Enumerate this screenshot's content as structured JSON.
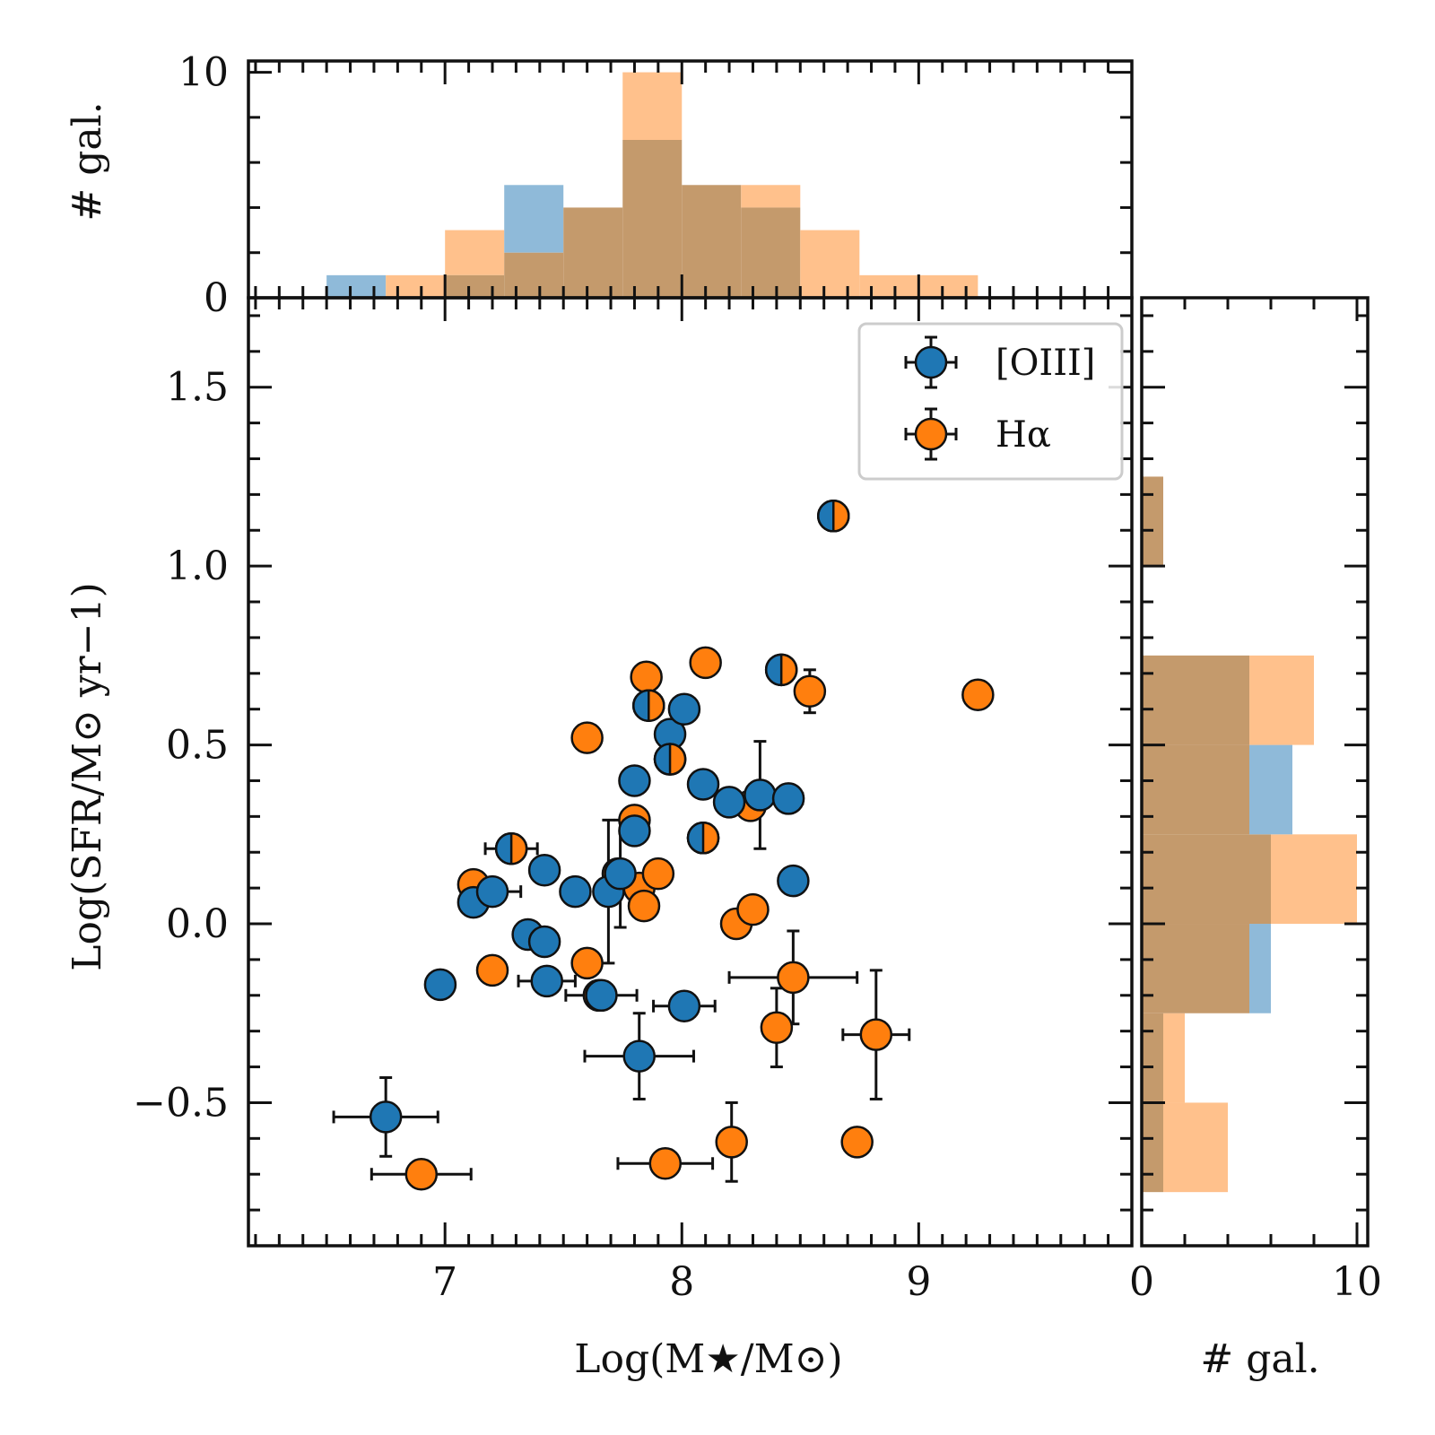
{
  "chart_data": {
    "type": "scatter",
    "title": "",
    "xlabel": "Log(M★/M⊙)",
    "ylabel": "Log(SFR/M⊙ yr−1)",
    "xlim": [
      6.17,
      9.9
    ],
    "ylim": [
      -0.9,
      1.75
    ],
    "x_ticks": [
      "7",
      "8",
      "9"
    ],
    "y_ticks": [
      "−0.5",
      "0.0",
      "0.5",
      "1.0",
      "1.5"
    ],
    "legend": {
      "placement": "top-right",
      "entries": [
        "[OIII]",
        "Hα"
      ]
    },
    "colors": {
      "oiii": "#1f77b4",
      "halpha": "#ff7f0e",
      "overlap": "#c49a6c",
      "oiii_hist": "#8fbad9",
      "halpha_hist": "#ffc18c",
      "edge": "#111111"
    },
    "series": [
      {
        "name": "[OIII]",
        "points": [
          {
            "x": 6.75,
            "y": -0.54,
            "xerr": 0.22,
            "yerr": 0.11
          },
          {
            "x": 6.98,
            "y": -0.17
          },
          {
            "x": 7.12,
            "y": 0.06
          },
          {
            "x": 7.2,
            "y": 0.09,
            "xerr": 0.12
          },
          {
            "x": 7.28,
            "y": 0.21,
            "xerr": 0.11
          },
          {
            "x": 7.35,
            "y": -0.03
          },
          {
            "x": 7.42,
            "y": -0.05
          },
          {
            "x": 7.42,
            "y": 0.15
          },
          {
            "x": 7.43,
            "y": -0.16,
            "xerr": 0.12
          },
          {
            "x": 7.55,
            "y": 0.09
          },
          {
            "x": 7.66,
            "y": -0.2,
            "xerr": 0.15
          },
          {
            "x": 7.69,
            "y": 0.09,
            "yerr": 0.2
          },
          {
            "x": 7.74,
            "y": 0.14,
            "yerr": 0.15
          },
          {
            "x": 7.8,
            "y": 0.4
          },
          {
            "x": 7.8,
            "y": 0.26
          },
          {
            "x": 7.82,
            "y": -0.37,
            "xerr": 0.23,
            "yerr": 0.12
          },
          {
            "x": 7.86,
            "y": 0.61
          },
          {
            "x": 7.95,
            "y": 0.53
          },
          {
            "x": 7.95,
            "y": 0.46
          },
          {
            "x": 8.01,
            "y": 0.6
          },
          {
            "x": 8.01,
            "y": -0.23,
            "xerr": 0.13
          },
          {
            "x": 8.09,
            "y": 0.39
          },
          {
            "x": 8.09,
            "y": 0.24
          },
          {
            "x": 8.2,
            "y": 0.34
          },
          {
            "x": 8.33,
            "y": 0.36,
            "yerr": 0.15
          },
          {
            "x": 8.42,
            "y": 0.71
          },
          {
            "x": 8.45,
            "y": 0.35,
            "xerr": 0.06
          },
          {
            "x": 8.47,
            "y": 0.12
          },
          {
            "x": 8.64,
            "y": 1.14
          }
        ]
      },
      {
        "name": "Hα",
        "points": [
          {
            "x": 6.9,
            "y": -0.7,
            "xerr": 0.21
          },
          {
            "x": 7.12,
            "y": 0.11
          },
          {
            "x": 7.2,
            "y": -0.13
          },
          {
            "x": 7.28,
            "y": 0.21
          },
          {
            "x": 7.6,
            "y": -0.11
          },
          {
            "x": 7.6,
            "y": 0.52
          },
          {
            "x": 7.65,
            "y": -0.2
          },
          {
            "x": 7.73,
            "y": 0.14
          },
          {
            "x": 7.8,
            "y": 0.29
          },
          {
            "x": 7.82,
            "y": 0.1
          },
          {
            "x": 7.84,
            "y": 0.05
          },
          {
            "x": 7.85,
            "y": 0.69
          },
          {
            "x": 7.86,
            "y": 0.61
          },
          {
            "x": 7.9,
            "y": 0.14
          },
          {
            "x": 7.93,
            "y": -0.67,
            "xerr": 0.2
          },
          {
            "x": 7.95,
            "y": 0.46
          },
          {
            "x": 8.09,
            "y": 0.24
          },
          {
            "x": 8.1,
            "y": 0.73
          },
          {
            "x": 8.21,
            "y": -0.61,
            "yerr": 0.11
          },
          {
            "x": 8.23,
            "y": 0.0
          },
          {
            "x": 8.29,
            "y": 0.33
          },
          {
            "x": 8.3,
            "y": 0.04
          },
          {
            "x": 8.4,
            "y": -0.29,
            "yerr": 0.11
          },
          {
            "x": 8.42,
            "y": 0.71
          },
          {
            "x": 8.47,
            "y": -0.15,
            "xerr": 0.27,
            "yerr": 0.13
          },
          {
            "x": 8.54,
            "y": 0.65,
            "yerr": 0.06
          },
          {
            "x": 8.64,
            "y": 1.14
          },
          {
            "x": 8.74,
            "y": -0.61
          },
          {
            "x": 8.82,
            "y": -0.31,
            "xerr": 0.14,
            "yerr": 0.18
          },
          {
            "x": 9.25,
            "y": 0.64
          }
        ]
      }
    ],
    "x_histogram": {
      "ylabel": "# gal.",
      "ylim": [
        0,
        10.5
      ],
      "yticks": [
        "0",
        "10"
      ],
      "bin_edges": [
        6.5,
        6.75,
        7.0,
        7.25,
        7.5,
        7.75,
        8.0,
        8.25,
        8.5,
        8.75,
        9.0,
        9.25
      ],
      "oiii_counts": [
        1,
        0,
        1,
        5,
        4,
        7,
        5,
        4,
        0,
        0,
        0
      ],
      "halpha_counts": [
        0,
        1,
        3,
        2,
        4,
        10,
        5,
        5,
        3,
        1,
        1
      ]
    },
    "y_histogram": {
      "xlabel": "# gal.",
      "xlim": [
        0,
        10.5
      ],
      "xticks": [
        "0",
        "10"
      ],
      "bin_edges": [
        -0.75,
        -0.5,
        -0.25,
        0.0,
        0.25,
        0.5,
        0.75,
        1.0,
        1.25
      ],
      "oiii_counts": [
        1,
        1,
        6,
        6,
        7,
        5,
        0,
        1
      ],
      "halpha_counts": [
        4,
        2,
        5,
        10,
        5,
        8,
        0,
        1
      ]
    }
  }
}
